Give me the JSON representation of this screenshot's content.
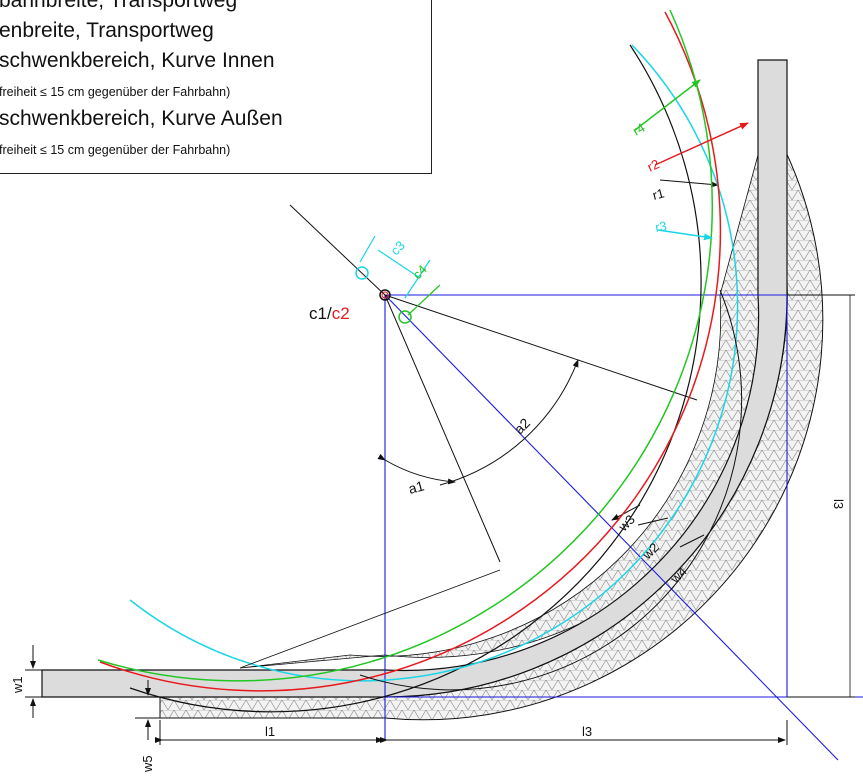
{
  "legend": {
    "line1": "bahnbreite, Transportweg",
    "line2": "enbreite, Transportweg",
    "line3": "schwenkbereich, Kurve Innen",
    "line3_note": "freiheit ≤ 15 cm gegenüber der Fahrbahn)",
    "line4": "schwenkbereich, Kurve Außen",
    "line4_note": "freiheit ≤ 15 cm gegenüber der Fahrbahn)"
  },
  "labels": {
    "center": "c1/",
    "center_c2": "c2",
    "c3": "c3",
    "c4": "c4",
    "r1": "r1",
    "r2": "r2",
    "r3": "r3",
    "r4": "r4",
    "a1": "a1",
    "a2": "a2",
    "w1": "w1",
    "w2": "w2",
    "w3": "w3",
    "w4": "w4",
    "w5": "w5",
    "l1": "l1",
    "l3_bottom": "l3",
    "l3_side": "l3"
  },
  "colors": {
    "black": "#111111",
    "red": "#e8191c",
    "green": "#22c622",
    "cyan": "#19d6e6",
    "blue": "#1a1adf",
    "band": "#dcdcdc"
  }
}
